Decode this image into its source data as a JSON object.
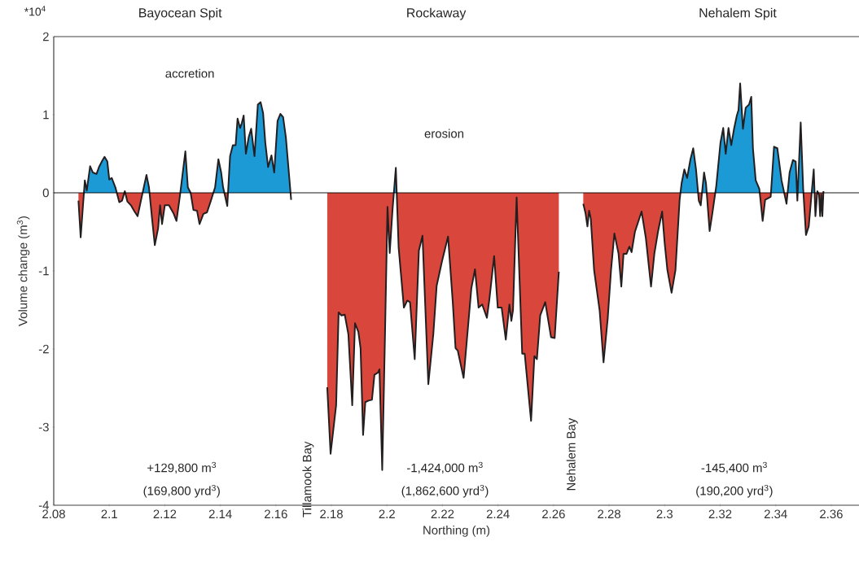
{
  "chart_data": {
    "type": "area",
    "xlabel": "Northing (m)",
    "ylabel": "Volume change (m$^{3}$)",
    "xlim": [
      2.08,
      2.37
    ],
    "ylim": [
      -4,
      2
    ],
    "xticks": [
      2.08,
      2.1,
      2.12,
      2.14,
      2.16,
      2.18,
      2.2,
      2.22,
      2.24,
      2.26,
      2.28,
      2.3,
      2.32,
      2.34,
      2.36
    ],
    "yticks": [
      -4,
      -3,
      -2,
      -1,
      0,
      1,
      2
    ],
    "colors": [
      "#1b9ad6",
      "#d9463b"
    ],
    "ref_lines": [
      {
        "axis": "y",
        "value": 0,
        "color": "#000000"
      }
    ],
    "series": [
      {
        "color": "#231f20",
        "x": [
          2.0889,
          2.0897,
          2.0912,
          2.0919,
          2.0931,
          2.0941,
          2.0954,
          2.0963,
          2.0973,
          2.0983,
          2.0993,
          2.1,
          2.1009,
          2.1022,
          2.1036,
          2.1046,
          2.1056,
          2.1065,
          2.1078,
          2.1091,
          2.1102,
          2.1117,
          2.1134,
          2.1143,
          2.1154,
          2.1164,
          2.1176,
          2.1183,
          2.119,
          2.12,
          2.1215,
          2.1231,
          2.1242,
          2.1254,
          2.1274,
          2.1283,
          2.1293,
          2.1303,
          2.1316,
          2.1325,
          2.1339,
          2.1352,
          2.1366,
          2.1381,
          2.1393,
          2.1403,
          2.141,
          2.1425,
          2.1435,
          2.1445,
          2.1455,
          2.1462,
          2.1471,
          2.1477,
          2.1484,
          2.1492,
          2.1502,
          2.1511,
          2.1523,
          2.1535,
          2.1545,
          2.1554,
          2.1562,
          2.1572,
          2.1584,
          2.1594,
          2.1606,
          2.1616,
          2.1626,
          2.1636,
          2.1655
        ],
        "values": [
          -0.1,
          -0.57,
          0.16,
          0.03,
          0.34,
          0.26,
          0.24,
          0.33,
          0.4,
          0.46,
          0.4,
          0.17,
          0.19,
          0.07,
          -0.12,
          -0.1,
          0.02,
          -0.11,
          -0.16,
          -0.24,
          -0.3,
          -0.05,
          0.23,
          0.07,
          -0.33,
          -0.67,
          -0.45,
          -0.16,
          -0.4,
          -0.16,
          -0.16,
          -0.26,
          -0.36,
          -0.05,
          0.53,
          0.07,
          0,
          -0.22,
          -0.23,
          -0.4,
          -0.27,
          -0.25,
          -0.1,
          0.07,
          0.43,
          0.26,
          0.07,
          -0.17,
          0.47,
          0.61,
          0.61,
          0.95,
          0.83,
          0.89,
          0.99,
          0.5,
          0.71,
          0.82,
          0.47,
          1.13,
          1.16,
          1.02,
          0.64,
          0.33,
          0.48,
          0.26,
          0.92,
          1.01,
          0.97,
          0.71,
          -0.09
        ]
      },
      {
        "color": "#231f20",
        "x": [
          2.1785,
          2.1797,
          2.1817,
          2.1826,
          2.1836,
          2.1848,
          2.1861,
          2.1875,
          2.1885,
          2.1897,
          2.1905,
          2.1914,
          2.1922,
          2.1934,
          2.1946,
          2.1955,
          2.1968,
          2.1973,
          2.1983,
          2.1993,
          2.2002,
          2.201,
          2.202,
          2.2032,
          2.2042,
          2.2061,
          2.2073,
          2.2083,
          2.21,
          2.2115,
          2.2128,
          2.2149,
          2.2167,
          2.2179,
          2.2198,
          2.222,
          2.2237,
          2.2247,
          2.2255,
          2.2276,
          2.2304,
          2.2317,
          2.233,
          2.2343,
          2.236,
          2.2369,
          2.2386,
          2.2399,
          2.2413,
          2.2428,
          2.2441,
          2.2448,
          2.2454,
          2.2467,
          2.2487,
          2.2496,
          2.2519,
          2.2531,
          2.254,
          2.2552,
          2.257,
          2.2591,
          2.2604,
          2.2619
        ],
        "values": [
          -2.49,
          -3.34,
          -2.72,
          -1.53,
          -1.57,
          -1.56,
          -1.81,
          -2.72,
          -1.67,
          -1.78,
          -1.99,
          -3.1,
          -2.68,
          -2.66,
          -2.65,
          -2.33,
          -2.3,
          -2.26,
          -3.55,
          -1.81,
          -0.18,
          -0.77,
          -0.22,
          0.32,
          -0.7,
          -1.47,
          -1.38,
          -1.4,
          -2.13,
          -0.74,
          -0.55,
          -2.45,
          -1.81,
          -1.19,
          -0.88,
          -0.56,
          -1.4,
          -1.99,
          -2.02,
          -2.37,
          -1.22,
          -0.98,
          -1.47,
          -1.43,
          -1.6,
          -1.36,
          -0.81,
          -1.47,
          -1.47,
          -1.88,
          -1.43,
          -1.64,
          -1.5,
          -0.06,
          -2.06,
          -2.06,
          -2.92,
          -2.09,
          -2.13,
          -1.57,
          -1.4,
          -1.85,
          -1.86,
          -1.01
        ]
      },
      {
        "color": "#231f20",
        "x": [
          2.2707,
          2.2715,
          2.2722,
          2.2728,
          2.2734,
          2.2746,
          2.2766,
          2.278,
          2.2795,
          2.2807,
          2.2819,
          2.2834,
          2.2844,
          2.2852,
          2.2863,
          2.2873,
          2.2881,
          2.2893,
          2.2917,
          2.2932,
          2.2951,
          2.2963,
          2.2976,
          2.2991,
          2.3,
          2.301,
          2.3025,
          2.3039,
          2.3054,
          2.3061,
          2.3071,
          2.3081,
          2.3093,
          2.3103,
          2.3113,
          2.3123,
          2.313,
          2.3142,
          2.3149,
          2.3162,
          2.3172,
          2.3186,
          2.3201,
          2.3211,
          2.322,
          2.323,
          2.324,
          2.325,
          2.326,
          2.3266,
          2.3272,
          2.3282,
          2.3292,
          2.3304,
          2.3312,
          2.3318,
          2.3328,
          2.3341,
          2.3353,
          2.3362,
          2.3382,
          2.3394,
          2.3406,
          2.3421,
          2.3439,
          2.345,
          2.3462,
          2.3472,
          2.3478,
          2.349,
          2.3499,
          2.3509,
          2.3519,
          2.3529,
          2.3537,
          2.3543,
          2.355,
          2.3556,
          2.356,
          2.3564,
          2.3568,
          2.3572
        ],
        "values": [
          -0.14,
          -0.26,
          -0.43,
          -0.23,
          -0.33,
          -0.99,
          -1.51,
          -2.17,
          -1.61,
          -0.99,
          -0.52,
          -0.78,
          -1.2,
          -0.78,
          -0.78,
          -0.69,
          -0.76,
          -0.5,
          -0.24,
          -0.57,
          -1.2,
          -0.78,
          -0.5,
          -0.24,
          -0.64,
          -0.99,
          -1.28,
          -0.99,
          -0.09,
          0.12,
          0.3,
          0.19,
          0.43,
          0.57,
          0.3,
          -0.1,
          -0.16,
          0.26,
          0.12,
          -0.49,
          -0.26,
          0.09,
          0.64,
          0.83,
          0.5,
          0.83,
          0.61,
          0.82,
          0.99,
          1.06,
          1.4,
          0.82,
          1.09,
          1.13,
          1.23,
          0.57,
          0.16,
          0.05,
          -0.36,
          -0.09,
          -0.05,
          0.59,
          0.57,
          0.16,
          -0.14,
          0.26,
          0.42,
          0.4,
          -0.1,
          0.9,
          0.05,
          -0.54,
          -0.43,
          -0.02,
          0.3,
          -0.3,
          0.02,
          -0.02,
          -0.3,
          -0.02,
          -0.3,
          0.02
        ]
      }
    ],
    "annotations": [
      "Bayocean Spit",
      "Rockaway",
      "Nehalem Spit",
      "accretion",
      "erosion",
      "Tillamook Bay",
      "Nehalem Bay",
      "+129,800 m$^{3}$",
      "(169,800 yrd$^{3}$)",
      "-1,424,000 m$^{3}$",
      "(1,862,600 yrd$^{3}$)",
      "-145,400 m$^{3}$",
      "(190,200 yrd$^{3}$)",
      "*10$^{4}$"
    ]
  }
}
